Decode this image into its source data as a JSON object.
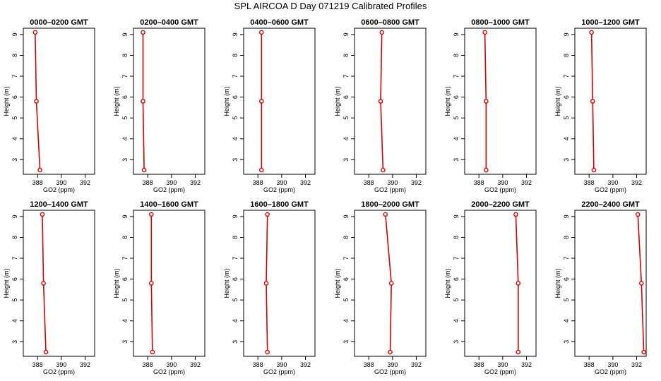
{
  "figure_title": "SPL AIRCOA D  Day 071219  Calibrated Profiles",
  "colors": {
    "series": "#dd0000",
    "axes": "#000000"
  },
  "chart_data": [
    {
      "type": "line",
      "title": "0000–0200 GMT",
      "xlabel": "GO2 (ppm)",
      "ylabel": "Height (m)",
      "xlim": [
        386.8,
        392.8
      ],
      "ylim": [
        2.3,
        9.3
      ],
      "xticks": [
        388,
        390,
        392
      ],
      "yticks": [
        3,
        4,
        5,
        6,
        7,
        8,
        9
      ],
      "series": [
        {
          "x": [
            388.2,
            387.9,
            387.8
          ],
          "y": [
            2.5,
            5.8,
            9.1
          ]
        }
      ]
    },
    {
      "type": "line",
      "title": "0200–0400 GMT",
      "xlabel": "GO2 (ppm)",
      "ylabel": "Height (m)",
      "xlim": [
        386.8,
        392.8
      ],
      "ylim": [
        2.3,
        9.3
      ],
      "xticks": [
        388,
        390,
        392
      ],
      "yticks": [
        3,
        4,
        5,
        6,
        7,
        8,
        9
      ],
      "series": [
        {
          "x": [
            387.7,
            387.6,
            387.6
          ],
          "y": [
            2.5,
            5.8,
            9.1
          ]
        }
      ]
    },
    {
      "type": "line",
      "title": "0400–0600 GMT",
      "xlabel": "GO2 (ppm)",
      "ylabel": "Height (m)",
      "xlim": [
        386.8,
        392.8
      ],
      "ylim": [
        2.3,
        9.3
      ],
      "xticks": [
        388,
        390,
        392
      ],
      "yticks": [
        3,
        4,
        5,
        6,
        7,
        8,
        9
      ],
      "series": [
        {
          "x": [
            388.3,
            388.3,
            388.3
          ],
          "y": [
            2.5,
            5.8,
            9.1
          ]
        }
      ]
    },
    {
      "type": "line",
      "title": "0600–0800 GMT",
      "xlabel": "GO2 (ppm)",
      "ylabel": "Height (m)",
      "xlim": [
        386.8,
        392.8
      ],
      "ylim": [
        2.3,
        9.3
      ],
      "xticks": [
        388,
        390,
        392
      ],
      "yticks": [
        3,
        4,
        5,
        6,
        7,
        8,
        9
      ],
      "series": [
        {
          "x": [
            389.2,
            389.0,
            389.1
          ],
          "y": [
            2.5,
            5.8,
            9.1
          ]
        }
      ]
    },
    {
      "type": "line",
      "title": "0800–1000 GMT",
      "xlabel": "GO2 (ppm)",
      "ylabel": "Height (m)",
      "xlim": [
        386.8,
        392.8
      ],
      "ylim": [
        2.3,
        9.3
      ],
      "xticks": [
        388,
        390,
        392
      ],
      "yticks": [
        3,
        4,
        5,
        6,
        7,
        8,
        9
      ],
      "series": [
        {
          "x": [
            388.6,
            388.6,
            388.5
          ],
          "y": [
            2.5,
            5.8,
            9.1
          ]
        }
      ]
    },
    {
      "type": "line",
      "title": "1000–1200 GMT",
      "xlabel": "GO2 (ppm)",
      "ylabel": "Height (m)",
      "xlim": [
        386.8,
        392.8
      ],
      "ylim": [
        2.3,
        9.3
      ],
      "xticks": [
        388,
        390,
        392
      ],
      "yticks": [
        3,
        4,
        5,
        6,
        7,
        8,
        9
      ],
      "series": [
        {
          "x": [
            388.4,
            388.3,
            388.2
          ],
          "y": [
            2.5,
            5.8,
            9.1
          ]
        }
      ]
    },
    {
      "type": "line",
      "title": "1200–1400 GMT",
      "xlabel": "GO2 (ppm)",
      "ylabel": "Height (m)",
      "xlim": [
        386.8,
        392.8
      ],
      "ylim": [
        2.3,
        9.3
      ],
      "xticks": [
        388,
        390,
        392
      ],
      "yticks": [
        3,
        4,
        5,
        6,
        7,
        8,
        9
      ],
      "series": [
        {
          "x": [
            388.7,
            388.5,
            388.4
          ],
          "y": [
            2.5,
            5.8,
            9.1
          ]
        }
      ]
    },
    {
      "type": "line",
      "title": "1400–1600 GMT",
      "xlabel": "GO2 (ppm)",
      "ylabel": "Height (m)",
      "xlim": [
        386.8,
        392.8
      ],
      "ylim": [
        2.3,
        9.3
      ],
      "xticks": [
        388,
        390,
        392
      ],
      "yticks": [
        3,
        4,
        5,
        6,
        7,
        8,
        9
      ],
      "series": [
        {
          "x": [
            388.4,
            388.3,
            388.3
          ],
          "y": [
            2.5,
            5.8,
            9.1
          ]
        }
      ]
    },
    {
      "type": "line",
      "title": "1600–1800 GMT",
      "xlabel": "GO2 (ppm)",
      "ylabel": "Height (m)",
      "xlim": [
        386.8,
        392.8
      ],
      "ylim": [
        2.3,
        9.3
      ],
      "xticks": [
        388,
        390,
        392
      ],
      "yticks": [
        3,
        4,
        5,
        6,
        7,
        8,
        9
      ],
      "series": [
        {
          "x": [
            388.8,
            388.7,
            388.8
          ],
          "y": [
            2.5,
            5.8,
            9.1
          ]
        }
      ]
    },
    {
      "type": "line",
      "title": "1800–2000 GMT",
      "xlabel": "GO2 (ppm)",
      "ylabel": "Height (m)",
      "xlim": [
        386.8,
        392.8
      ],
      "ylim": [
        2.3,
        9.3
      ],
      "xticks": [
        388,
        390,
        392
      ],
      "yticks": [
        3,
        4,
        5,
        6,
        7,
        8,
        9
      ],
      "series": [
        {
          "x": [
            389.8,
            389.9,
            389.4
          ],
          "y": [
            2.5,
            5.8,
            9.1
          ]
        }
      ]
    },
    {
      "type": "line",
      "title": "2000–2200 GMT",
      "xlabel": "GO2 (ppm)",
      "ylabel": "Height (m)",
      "xlim": [
        386.8,
        392.8
      ],
      "ylim": [
        2.3,
        9.3
      ],
      "xticks": [
        388,
        390,
        392
      ],
      "yticks": [
        3,
        4,
        5,
        6,
        7,
        8,
        9
      ],
      "series": [
        {
          "x": [
            391.3,
            391.3,
            391.1
          ],
          "y": [
            2.5,
            5.8,
            9.1
          ]
        }
      ]
    },
    {
      "type": "line",
      "title": "2200–2400 GMT",
      "xlabel": "GO2 (ppm)",
      "ylabel": "Height (m)",
      "xlim": [
        386.8,
        392.8
      ],
      "ylim": [
        2.3,
        9.3
      ],
      "xticks": [
        388,
        390,
        392
      ],
      "yticks": [
        3,
        4,
        5,
        6,
        7,
        8,
        9
      ],
      "series": [
        {
          "x": [
            392.6,
            392.4,
            392.1
          ],
          "y": [
            2.5,
            5.8,
            9.1
          ]
        }
      ]
    }
  ]
}
